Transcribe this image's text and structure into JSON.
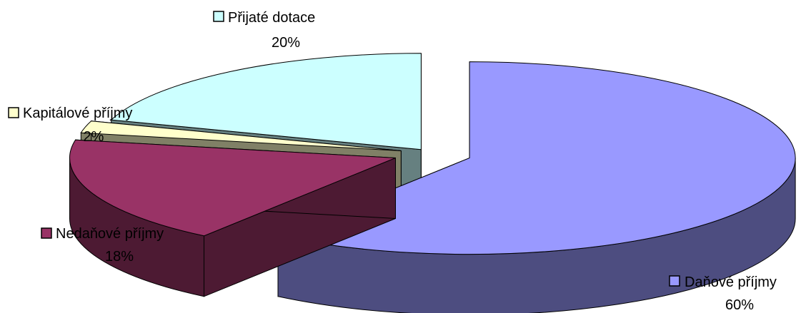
{
  "chart_data": {
    "type": "pie",
    "title": "",
    "three_d": true,
    "exploded": true,
    "categories": [
      "Daňové příjmy",
      "Nedaňové příjmy",
      "Kapitálové příjmy",
      "Přijaté dotace"
    ],
    "values": [
      60,
      18,
      2,
      20
    ],
    "percent_labels": [
      "60%",
      "18%",
      "2%",
      "20%"
    ],
    "colors": [
      "#9999ff",
      "#993366",
      "#ffffcc",
      "#ccffff"
    ],
    "side_colors": [
      "#4d4d80",
      "#4d1a33",
      "#808066",
      "#668080"
    ],
    "legend": "data labels with color key next to each slice"
  }
}
